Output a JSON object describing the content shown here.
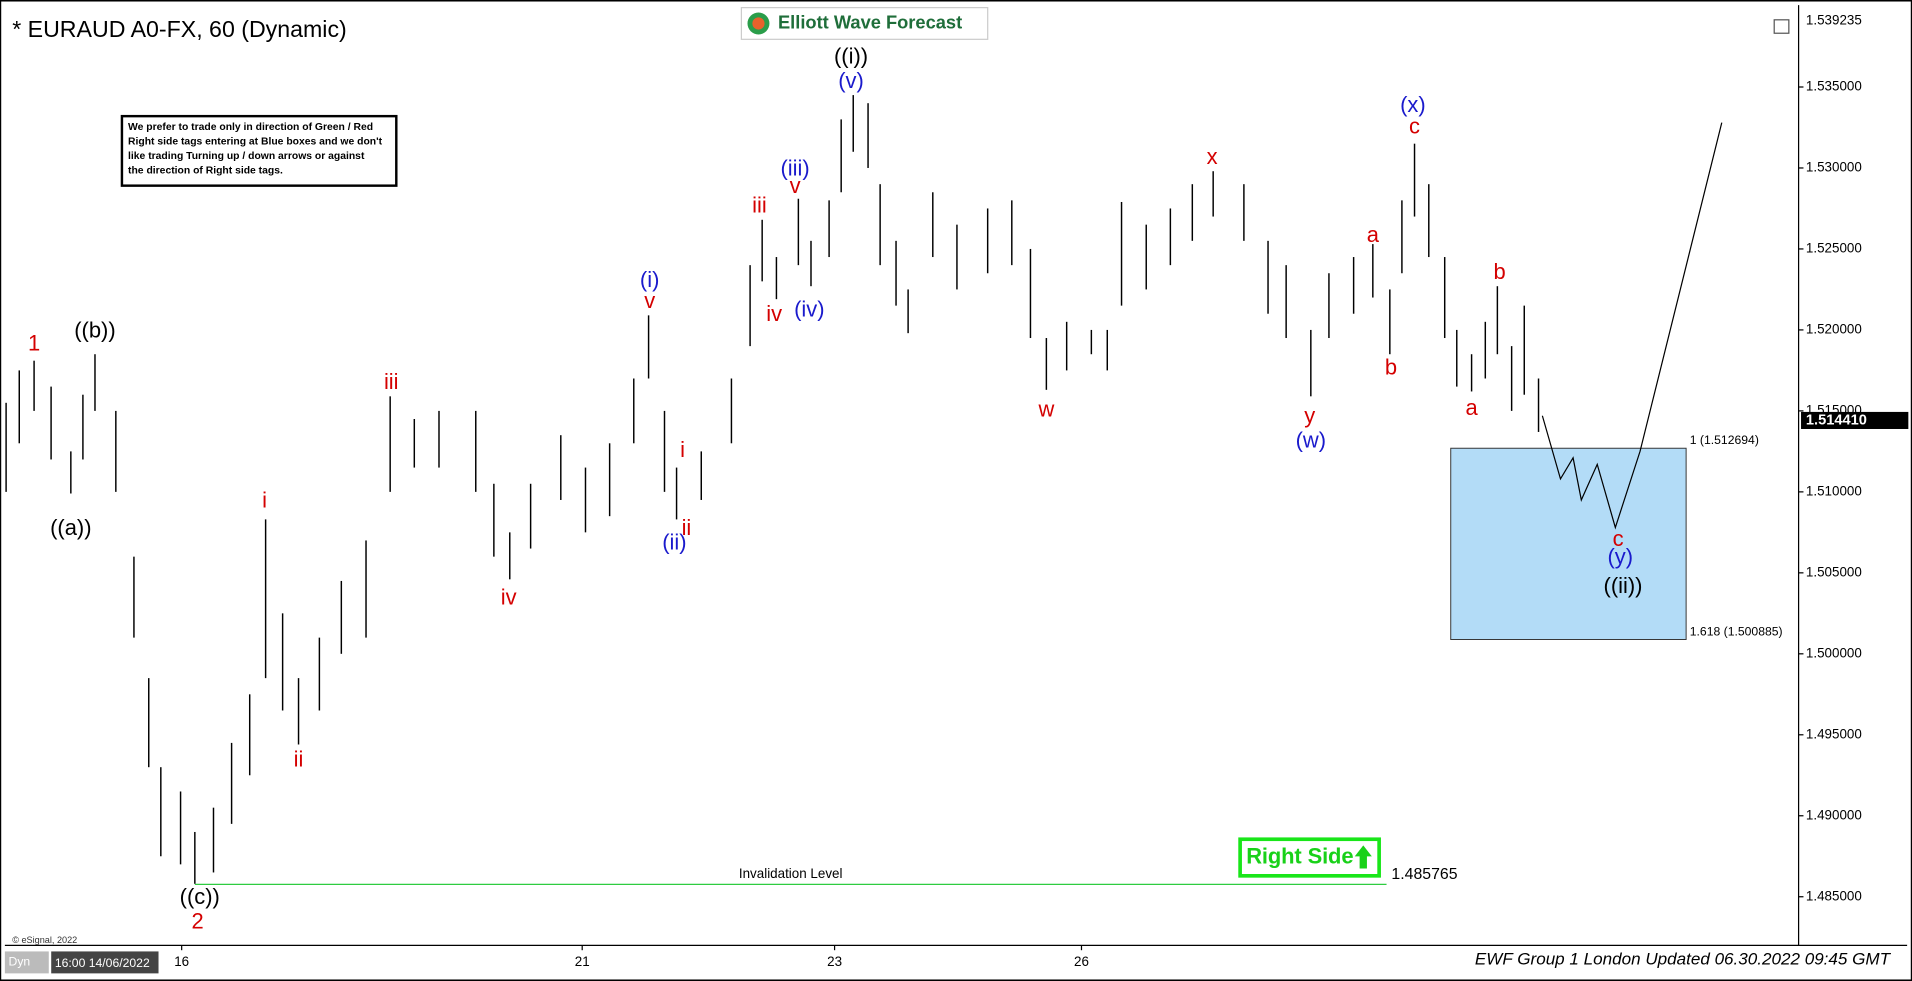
{
  "chart_data": {
    "type": "ohlc",
    "title": "* EURAUD A0-FX, 60 (Dynamic)",
    "logo": "Elliott Wave Forecast",
    "note": [
      "We prefer to trade only in direction of Green / Red",
      "Right side tags entering at Blue boxes and we don't",
      "like trading Turning up / down arrows or against",
      "the direction of Right side tags."
    ],
    "footer": "EWF Group 1 London Updated 06.30.2022 09:45 GMT",
    "copyright": "© eSignal, 2022",
    "corner_tag": "Dyn",
    "corner_time": "16:00 14/06/2022",
    "right_side": "Right Side",
    "top_price": 1.539235,
    "last_price": 1.51441,
    "last_price_label": "1.514410",
    "xlim": [
      0,
      326.7
    ],
    "ylim": [
      1.482,
      1.5396
    ],
    "xticks": [
      {
        "value": 32,
        "label": "16"
      },
      {
        "value": 105,
        "label": "21"
      },
      {
        "value": 151,
        "label": "23"
      },
      {
        "value": 196,
        "label": "26"
      }
    ],
    "yticks": [
      {
        "value": 1.485,
        "label": "1.485000"
      },
      {
        "value": 1.49,
        "label": "1.490000"
      },
      {
        "value": 1.495,
        "label": "1.495000"
      },
      {
        "value": 1.5,
        "label": "1.500000"
      },
      {
        "value": 1.505,
        "label": "1.505000"
      },
      {
        "value": 1.51,
        "label": "1.510000"
      },
      {
        "value": 1.515,
        "label": "1.515000"
      },
      {
        "value": 1.52,
        "label": "1.520000"
      },
      {
        "value": 1.525,
        "label": "1.525000"
      },
      {
        "value": 1.53,
        "label": "1.530000"
      },
      {
        "value": 1.535,
        "label": "1.535000"
      }
    ],
    "bar_color": "#000000",
    "bars": {
      "x": [
        0,
        2.4,
        5.1,
        8.2,
        11.8,
        14,
        16.2,
        20,
        23.3,
        26,
        28.2,
        31.8,
        34.4,
        37.8,
        41.1,
        44.4,
        47.3,
        50.4,
        53.3,
        57.1,
        61.1,
        65.6,
        70,
        74.4,
        78.9,
        85.6,
        88.9,
        91.8,
        95.6,
        101.1,
        105.6,
        110,
        114.4,
        117.1,
        120,
        122.2,
        126.7,
        132.2,
        135.6,
        137.8,
        140.4,
        144.4,
        146.7,
        150,
        152.2,
        154.4,
        157.1,
        159.3,
        162.2,
        164.4,
        168.9,
        173.3,
        178.9,
        183.3,
        186.7,
        189.6,
        193.3,
        197.8,
        200.7,
        203.3,
        207.8,
        212.2,
        216.2,
        220,
        225.6,
        230,
        233.3,
        237.8,
        241.1,
        245.6,
        249.1,
        252.2,
        254.4,
        256.7,
        259.3,
        262.2,
        264.4,
        267.1,
        269.6,
        271.8,
        274.4,
        276.7,
        279.3
      ],
      "high": [
        1.5155,
        1.5175,
        1.5181,
        1.5165,
        1.5125,
        1.516,
        1.5185,
        1.515,
        1.506,
        1.4985,
        1.493,
        1.4915,
        1.489,
        1.4905,
        1.4945,
        1.4975,
        1.5083,
        1.5025,
        1.4985,
        1.501,
        1.5045,
        1.507,
        1.5159,
        1.5145,
        1.515,
        1.515,
        1.5105,
        1.5075,
        1.5105,
        1.5135,
        1.5115,
        1.513,
        1.517,
        1.5209,
        1.515,
        1.5115,
        1.5125,
        1.517,
        1.524,
        1.5268,
        1.5245,
        1.5281,
        1.5255,
        1.528,
        1.533,
        1.5345,
        1.534,
        1.529,
        1.5255,
        1.5225,
        1.5285,
        1.5265,
        1.5275,
        1.528,
        1.525,
        1.5195,
        1.5205,
        1.52,
        1.52,
        1.5279,
        1.5265,
        1.5275,
        1.529,
        1.5298,
        1.529,
        1.5255,
        1.524,
        1.52,
        1.5235,
        1.5245,
        1.5253,
        1.5225,
        1.528,
        1.5315,
        1.529,
        1.5245,
        1.52,
        1.5185,
        1.5205,
        1.5227,
        1.519,
        1.5215,
        1.517
      ],
      "low": [
        1.51,
        1.513,
        1.515,
        1.512,
        1.5099,
        1.512,
        1.515,
        1.51,
        1.501,
        1.493,
        1.4875,
        1.487,
        1.4858,
        1.4865,
        1.4895,
        1.4925,
        1.4985,
        1.4965,
        1.4944,
        1.4965,
        1.5,
        1.501,
        1.51,
        1.5115,
        1.5115,
        1.51,
        1.506,
        1.5046,
        1.5065,
        1.5095,
        1.5075,
        1.5085,
        1.513,
        1.517,
        1.51,
        1.5083,
        1.5095,
        1.513,
        1.519,
        1.523,
        1.5219,
        1.524,
        1.5227,
        1.5245,
        1.5285,
        1.531,
        1.53,
        1.524,
        1.5215,
        1.5198,
        1.5245,
        1.5225,
        1.5235,
        1.524,
        1.5195,
        1.5163,
        1.5175,
        1.5185,
        1.5175,
        1.5215,
        1.5225,
        1.524,
        1.5255,
        1.527,
        1.5255,
        1.521,
        1.5195,
        1.5159,
        1.5195,
        1.521,
        1.522,
        1.5185,
        1.5235,
        1.527,
        1.5245,
        1.5195,
        1.5165,
        1.5162,
        1.517,
        1.5185,
        1.515,
        1.516,
        1.5137
      ]
    },
    "projection": {
      "color": "#000000",
      "x": [
        280,
        283.3,
        285.6,
        287.1,
        290,
        293.3,
        297.8,
        312.7
      ],
      "values": [
        1.5147,
        1.5108,
        1.5121,
        1.5095,
        1.5117,
        1.5078,
        1.5125,
        1.5328
      ]
    },
    "target_box": {
      "color": "#b3dcf7",
      "x": [
        263.3,
        306.2
      ],
      "top": 1.512694,
      "bottom": 1.500885,
      "top_label": "1 (1.512694)",
      "bottom_label": "1.618 (1.500885)"
    },
    "invalidation": {
      "color": "#2ecc40",
      "label": "Invalidation Level",
      "value": 1.485765,
      "x": [
        34.4,
        251.6
      ]
    },
    "wave_labels": [
      {
        "text": "1",
        "color": "#d40000",
        "x": 5.1,
        "y": 1.5191
      },
      {
        "text": "((b))",
        "color": "#000000",
        "x": 16.2,
        "y": 1.5199
      },
      {
        "text": "((a))",
        "color": "#000000",
        "x": 11.8,
        "y": 1.5077
      },
      {
        "text": "((c))",
        "color": "#000000",
        "x": 35.3,
        "y": 1.4849
      },
      {
        "text": "2",
        "color": "#d40000",
        "x": 34.9,
        "y": 1.4834
      },
      {
        "text": "i",
        "color": "#d40000",
        "x": 47.1,
        "y": 1.5094
      },
      {
        "text": "ii",
        "color": "#d40000",
        "x": 53.3,
        "y": 1.4934
      },
      {
        "text": "iii",
        "color": "#d40000",
        "x": 70.2,
        "y": 1.5167
      },
      {
        "text": "iv",
        "color": "#d40000",
        "x": 91.6,
        "y": 1.5034
      },
      {
        "text": "(i)",
        "color": "#1a1acc",
        "x": 117.3,
        "y": 1.523
      },
      {
        "text": "v",
        "color": "#d40000",
        "x": 117.3,
        "y": 1.5217
      },
      {
        "text": "i",
        "color": "#d40000",
        "x": 123.3,
        "y": 1.5125
      },
      {
        "text": "ii",
        "color": "#d40000",
        "x": 124,
        "y": 1.5077
      },
      {
        "text": "(ii)",
        "color": "#1a1acc",
        "x": 121.8,
        "y": 1.5068
      },
      {
        "text": "iii",
        "color": "#d40000",
        "x": 137.3,
        "y": 1.5276
      },
      {
        "text": "iv",
        "color": "#d40000",
        "x": 140,
        "y": 1.5209
      },
      {
        "text": "(iii)",
        "color": "#1a1acc",
        "x": 143.8,
        "y": 1.5299
      },
      {
        "text": "v",
        "color": "#d40000",
        "x": 143.8,
        "y": 1.5288
      },
      {
        "text": "(iv)",
        "color": "#1a1acc",
        "x": 146.4,
        "y": 1.5212
      },
      {
        "text": "((i))",
        "color": "#000000",
        "x": 154,
        "y": 1.5368
      },
      {
        "text": "(v)",
        "color": "#1a1acc",
        "x": 154,
        "y": 1.5353
      },
      {
        "text": "w",
        "color": "#d40000",
        "x": 189.6,
        "y": 1.515
      },
      {
        "text": "x",
        "color": "#d40000",
        "x": 219.8,
        "y": 1.5306
      },
      {
        "text": "y",
        "color": "#d40000",
        "x": 237.6,
        "y": 1.5146
      },
      {
        "text": "(w)",
        "color": "#1a1acc",
        "x": 237.8,
        "y": 1.5131
      },
      {
        "text": "a",
        "color": "#d40000",
        "x": 249.1,
        "y": 1.5258
      },
      {
        "text": "b",
        "color": "#d40000",
        "x": 252.4,
        "y": 1.5176
      },
      {
        "text": "(x)",
        "color": "#1a1acc",
        "x": 256.4,
        "y": 1.5338
      },
      {
        "text": "c",
        "color": "#d40000",
        "x": 256.7,
        "y": 1.5325
      },
      {
        "text": "a",
        "color": "#d40000",
        "x": 267.1,
        "y": 1.5151
      },
      {
        "text": "b",
        "color": "#d40000",
        "x": 272.2,
        "y": 1.5235
      },
      {
        "text": "c",
        "color": "#d40000",
        "x": 293.8,
        "y": 1.507
      },
      {
        "text": "(y)",
        "color": "#1a1acc",
        "x": 294.2,
        "y": 1.5059
      },
      {
        "text": "((ii))",
        "color": "#000000",
        "x": 294.7,
        "y": 1.5041
      }
    ]
  }
}
